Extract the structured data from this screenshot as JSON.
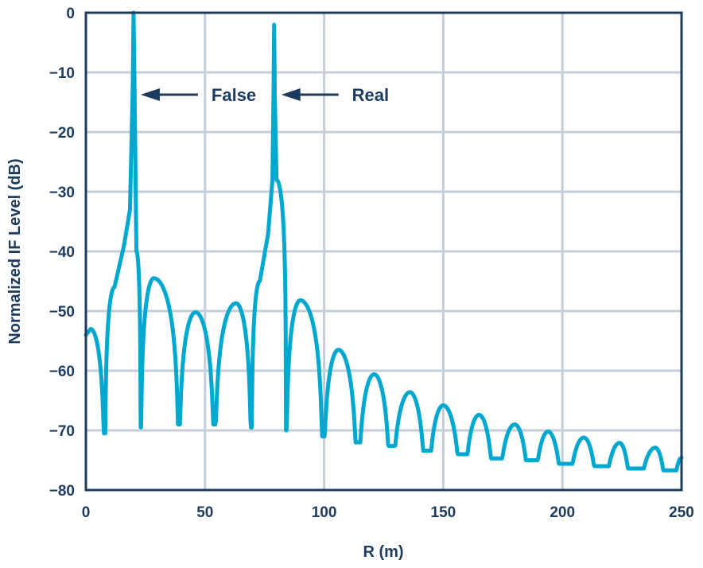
{
  "chart_data": {
    "type": "line",
    "title": "",
    "xlabel": "R (m)",
    "ylabel": "Normalized IF Level (dB)",
    "xlim": [
      0,
      250
    ],
    "ylim": [
      -80,
      0
    ],
    "xticks": [
      0,
      50,
      100,
      150,
      200,
      250
    ],
    "yticks": [
      0,
      -10,
      -20,
      -30,
      -40,
      -50,
      -60,
      -70,
      -80
    ],
    "ytick_labels": [
      "0",
      "−10",
      "−20",
      "−30",
      "−40",
      "−50",
      "−60",
      "−70",
      "−80"
    ],
    "grid": true,
    "line_color": "#00a8d0",
    "grid_color": "#c3ced8",
    "axis_color": "#1c3b5e",
    "annotations": [
      {
        "text": "False",
        "points_to_x": 20,
        "at_y": -14
      },
      {
        "text": "Real",
        "points_to_x": 79,
        "at_y": -14
      }
    ],
    "series": [
      {
        "x": [
          0,
          2,
          8,
          12,
          16,
          18.5,
          19.7,
          20,
          20.4,
          21.2,
          23,
          28.5,
          39,
          46,
          54,
          63,
          69.5,
          73,
          76.5,
          78.3,
          78.8,
          79,
          79.3,
          80,
          84,
          90,
          99.5,
          106,
          114,
          121,
          128,
          136,
          143,
          150,
          158,
          165,
          172,
          180,
          187,
          194,
          201,
          209,
          216,
          224,
          230,
          239,
          245,
          250
        ],
        "y": [
          -54,
          -53,
          -70.5,
          -46,
          -39,
          -33,
          -12,
          0,
          -12,
          -40,
          -69.5,
          -44.5,
          -69,
          -50.2,
          -69,
          -48.7,
          -69.5,
          -45,
          -37,
          -28,
          -12,
          -2,
          -14,
          -28,
          -70,
          -48.2,
          -71,
          -56.5,
          -72,
          -60.6,
          -72.6,
          -63.6,
          -73.4,
          -65.8,
          -74,
          -67.4,
          -74.7,
          -69,
          -75,
          -70.2,
          -75.6,
          -71.2,
          -76,
          -72.1,
          -76.4,
          -72.9,
          -76.7,
          -74.6
        ]
      }
    ]
  }
}
